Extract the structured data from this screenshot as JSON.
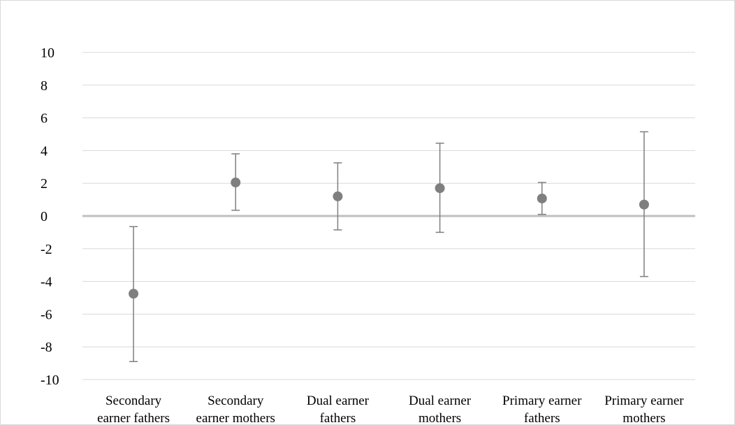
{
  "chart_data": {
    "type": "scatter",
    "title": "",
    "xlabel": "",
    "ylabel": "",
    "ylim": [
      -10,
      10
    ],
    "yticks": [
      10,
      8,
      6,
      4,
      2,
      0,
      -2,
      -4,
      -6,
      -8,
      -10
    ],
    "ytick_labels": [
      "10",
      "8",
      "6",
      "4",
      "2",
      "0",
      "-2",
      "-4",
      "-6",
      "-8",
      "-10"
    ],
    "grid": true,
    "legend": "none",
    "categories": [
      [
        "Secondary",
        "earner fathers"
      ],
      [
        "Secondary",
        "earner mothers"
      ],
      [
        "Dual earner",
        "fathers"
      ],
      [
        "Dual earner",
        "mothers"
      ],
      [
        "Primary earner",
        "fathers"
      ],
      [
        "Primary earner",
        "mothers"
      ]
    ],
    "series": [
      {
        "values": [
          -4.75,
          2.05,
          1.2,
          1.7,
          1.07,
          0.7
        ],
        "error_low": [
          -8.9,
          0.35,
          -0.85,
          -1.0,
          0.1,
          -3.7
        ],
        "error_high": [
          -0.65,
          3.8,
          3.25,
          4.45,
          2.05,
          5.15
        ]
      }
    ],
    "colors": {
      "marker": "#7f7f7f",
      "errorbar": "#7f7f7f",
      "grid": "#d9d9d9",
      "zero_line": "#bfbfbf"
    }
  }
}
